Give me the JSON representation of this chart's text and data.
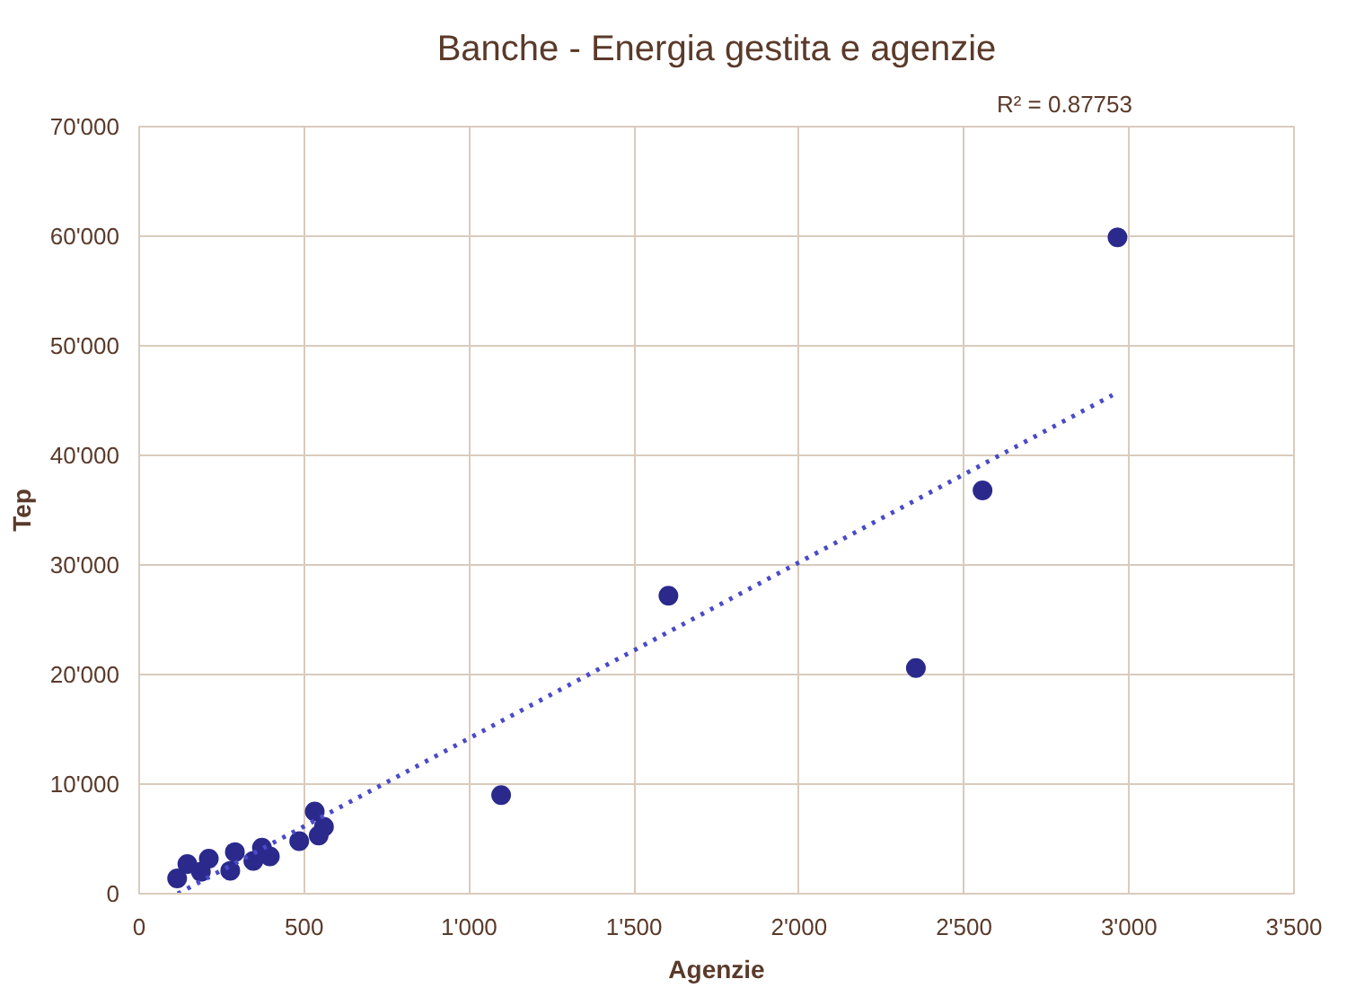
{
  "chart_data": {
    "type": "scatter",
    "title": "Banche - Energia gestita e agenzie",
    "xlabel": "Agenzie",
    "ylabel": "Tep",
    "xlim": [
      0,
      3500
    ],
    "ylim": [
      0,
      70000
    ],
    "xticks": [
      0,
      500,
      {
        "value": 1000,
        "label": "1'000"
      },
      {
        "value": 1500,
        "label": "1'500"
      },
      {
        "value": 2000,
        "label": "2'000"
      },
      {
        "value": 2500,
        "label": "2'500"
      },
      {
        "value": 3000,
        "label": "3'000"
      },
      {
        "value": 3500,
        "label": "3'500"
      }
    ],
    "yticks": [
      0,
      {
        "value": 10000,
        "label": "10'000"
      },
      {
        "value": 20000,
        "label": "20'000"
      },
      {
        "value": 30000,
        "label": "30'000"
      },
      {
        "value": 40000,
        "label": "40'000"
      },
      {
        "value": 50000,
        "label": "50'000"
      },
      {
        "value": 60000,
        "label": "60'000"
      },
      {
        "value": 70000,
        "label": "70'000"
      }
    ],
    "grid": true,
    "marker": "circle",
    "annotations": [
      "R² = 0.87753"
    ],
    "series": [
      {
        "color": "#2b2a8c",
        "x": [
          115,
          146,
          187,
          211,
          276,
          290,
          346,
          372,
          396,
          485,
          532,
          544,
          560,
          1097,
          1604,
          2354,
          2556,
          2965
        ],
        "values": [
          1400,
          2700,
          2000,
          3200,
          2100,
          3800,
          3000,
          4200,
          3400,
          4800,
          7500,
          5300,
          6100,
          9000,
          27200,
          20600,
          36800,
          59900
        ]
      },
      {
        "type": "line",
        "marker": "none",
        "line_style": "dotted",
        "color": "#4a4ac8",
        "x": [
          117,
          2950
        ],
        "values": [
          0,
          45500
        ]
      }
    ]
  }
}
